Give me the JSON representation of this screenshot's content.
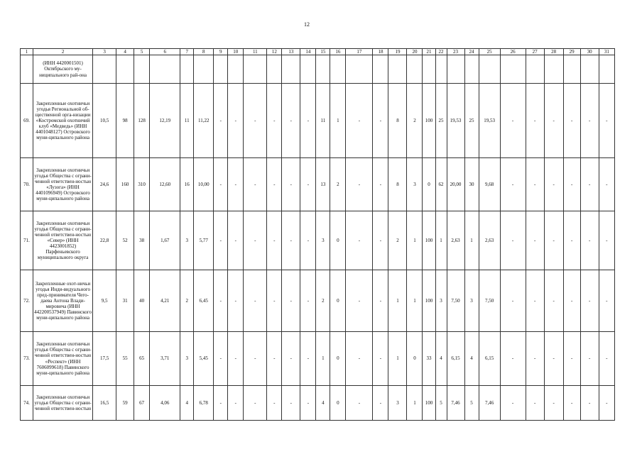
{
  "page_number": "12",
  "header": [
    "1",
    "2",
    "3",
    "4",
    "5",
    "6",
    "7",
    "8",
    "9",
    "10",
    "11",
    "12",
    "13",
    "14",
    "15",
    "16",
    "17",
    "18",
    "19",
    "20",
    "21",
    "22",
    "23",
    "24",
    "25",
    "26",
    "27",
    "28",
    "29",
    "30",
    "31"
  ],
  "rows": [
    {
      "num": "",
      "name": "(ИНН 4420001501) Октябрьского му-ниципального рай-она",
      "values": [
        "",
        "",
        "",
        "",
        "",
        "",
        "",
        "",
        "",
        "",
        "",
        "",
        "",
        "",
        "",
        "",
        "",
        "",
        "",
        "",
        "",
        "",
        "",
        "",
        "",
        "",
        "",
        "",
        ""
      ]
    },
    {
      "num": "69.",
      "name": "Закрепленные охотничьи угодья Региональной об-щественной орга-низации «Костромской охотничий клуб «Медведь» (ИНН 4401048127) Островского муни-ципального района",
      "values": [
        "10,5",
        "98",
        "128",
        "12,19",
        "11",
        "11,22",
        "-",
        "-",
        "-",
        "-",
        "-",
        "-",
        "11",
        "1",
        "-",
        "-",
        "8",
        "2",
        "100",
        "25",
        "19,53",
        "25",
        "19,53",
        "-",
        "-",
        "-",
        "-",
        "-",
        "-"
      ]
    },
    {
      "num": "70.",
      "name": "Закрепленные охотничьи угодья Общества с ограни-ченной ответствен-ностью «Лузога» (ИНН 4401096949) Островского муни-ципального района",
      "values": [
        "24,6",
        "160",
        "310",
        "12,60",
        "16",
        "10,00",
        "-",
        "-",
        "-",
        "-",
        "-",
        "-",
        "13",
        "2",
        "-",
        "-",
        "8",
        "3",
        "0",
        "62",
        "20,00",
        "30",
        "9,68",
        "-",
        "-",
        "-",
        "-",
        "-",
        "-"
      ]
    },
    {
      "num": "71.",
      "name": "Закрепленные охотничьи угодья Общества с ограни-ченной ответствен-ностью «Север» (ИНН 4423001852) Парфеньевского муниципального округа",
      "values": [
        "22,8",
        "52",
        "38",
        "1,67",
        "3",
        "5,77",
        "-",
        "-",
        "-",
        "-",
        "-",
        "-",
        "3",
        "0",
        "-",
        "-",
        "2",
        "1",
        "100",
        "1",
        "2,63",
        "1",
        "2,63",
        "-",
        "-",
        "-",
        "-",
        "-",
        "-"
      ]
    },
    {
      "num": "72.",
      "name": "Закрепленные охот-ничьи угодья Инди-видуального пред-принимателя Чего-даева Антона Влади-мировича (ИНН 442200537949) Павинского муни-ципального района",
      "values": [
        "9,5",
        "31",
        "40",
        "4,21",
        "2",
        "6,45",
        "-",
        "-",
        "-",
        "-",
        "-",
        "-",
        "2",
        "0",
        "-",
        "-",
        "1",
        "1",
        "100",
        "3",
        "7,50",
        "3",
        "7,50",
        "-",
        "-",
        "-",
        "-",
        "-",
        "-"
      ]
    },
    {
      "num": "73.",
      "name": "Закрепленные охотничьи угодья Общества с ограни-ченной ответствен-ностью «Респект» (ИНН 7606099618) Павинского муни-ципального района",
      "values": [
        "17,5",
        "55",
        "65",
        "3,71",
        "3",
        "5,45",
        "-",
        "-",
        "-",
        "-",
        "-",
        "-",
        "1",
        "0",
        "-",
        "-",
        "1",
        "0",
        "33",
        "4",
        "6,15",
        "4",
        "6,15",
        "-",
        "-",
        "-",
        "-",
        "-",
        "-"
      ]
    },
    {
      "num": "74.",
      "name": "Закрепленные охотничьи угодья Общества с ограни-ченной ответствен-ностью",
      "values": [
        "16,5",
        "59",
        "67",
        "4,06",
        "4",
        "6,78",
        "-",
        "-",
        "-",
        "-",
        "-",
        "-",
        "4",
        "0",
        "-",
        "-",
        "3",
        "1",
        "100",
        "5",
        "7,46",
        "5",
        "7,46",
        "-",
        "-",
        "-",
        "-",
        "-",
        "-"
      ]
    }
  ]
}
